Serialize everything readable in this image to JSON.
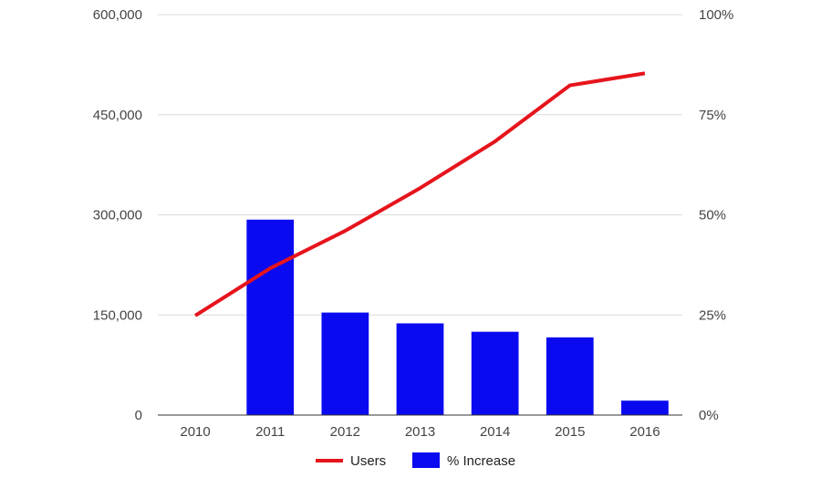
{
  "chart_data": {
    "type": "bar+line",
    "categories": [
      "2010",
      "2011",
      "2012",
      "2013",
      "2014",
      "2015",
      "2016"
    ],
    "series": [
      {
        "name": "Users",
        "type": "line",
        "axis": "left",
        "values": [
          149000,
          220000,
          276000,
          340000,
          410000,
          494000,
          512000
        ]
      },
      {
        "name": "% Increase",
        "type": "bar",
        "axis": "right",
        "values": [
          0,
          48.8,
          25.6,
          22.9,
          20.8,
          19.4,
          3.6
        ]
      }
    ],
    "left_axis": {
      "range": [
        0,
        600000
      ],
      "ticks": [
        {
          "value": 0,
          "label": "0"
        },
        {
          "value": 150000,
          "label": "150,000"
        },
        {
          "value": 300000,
          "label": "300,000"
        },
        {
          "value": 450000,
          "label": "450,000"
        },
        {
          "value": 600000,
          "label": "600,000"
        }
      ]
    },
    "right_axis": {
      "range": [
        0,
        100
      ],
      "ticks": [
        {
          "value": 0,
          "label": "0%"
        },
        {
          "value": 25,
          "label": "25%"
        },
        {
          "value": 50,
          "label": "50%"
        },
        {
          "value": 75,
          "label": "75%"
        },
        {
          "value": 100,
          "label": "100%"
        }
      ]
    },
    "grid": true,
    "legend_position": "bottom",
    "colors": {
      "Users": "#e6141c",
      "% Increase": "#0a0af0",
      "grid": "#d9d9d9",
      "baseline": "#333333"
    }
  }
}
